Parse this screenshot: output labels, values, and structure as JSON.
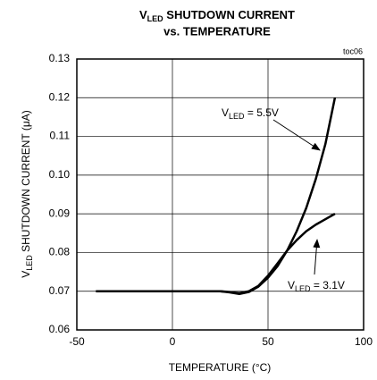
{
  "chart_data": {
    "type": "line",
    "title": {
      "main": "V",
      "sub": "LED",
      "rest": " SHUTDOWN CURRENT",
      "line2": "vs. TEMPERATURE"
    },
    "note": "toc06",
    "xlabel": "TEMPERATURE (°C)",
    "ylabel": {
      "main": "V",
      "sub": "LED",
      "rest": " SHUTDOWN CURRENT (μA)"
    },
    "x": [
      -40,
      0,
      25,
      30,
      35,
      40,
      45,
      50,
      55,
      60,
      65,
      70,
      75,
      80,
      85
    ],
    "series": [
      {
        "label": {
          "main": "V",
          "sub": "LED",
          "rest": " = 5.5V"
        },
        "color": "#000000",
        "values": [
          0.07,
          0.07,
          0.07,
          0.0697,
          0.0693,
          0.0698,
          0.0712,
          0.0735,
          0.0765,
          0.0805,
          0.0855,
          0.0915,
          0.099,
          0.108,
          0.12
        ]
      },
      {
        "label": {
          "main": "V",
          "sub": "LED",
          "rest": " = 3.1V"
        },
        "color": "#000000",
        "values": [
          0.07,
          0.07,
          0.07,
          0.0698,
          0.0695,
          0.07,
          0.0714,
          0.074,
          0.0772,
          0.0805,
          0.0832,
          0.0855,
          0.0872,
          0.0886,
          0.09
        ]
      }
    ],
    "xlim": [
      -50,
      100
    ],
    "xticks": [
      -50,
      0,
      50,
      100
    ],
    "ylim": [
      0.06,
      0.13
    ],
    "yticks": [
      0.06,
      0.07,
      0.08,
      0.09,
      {
        "value": 0.1,
        "label": "0.10"
      },
      0.11,
      0.12,
      0.13
    ],
    "grid": true
  }
}
